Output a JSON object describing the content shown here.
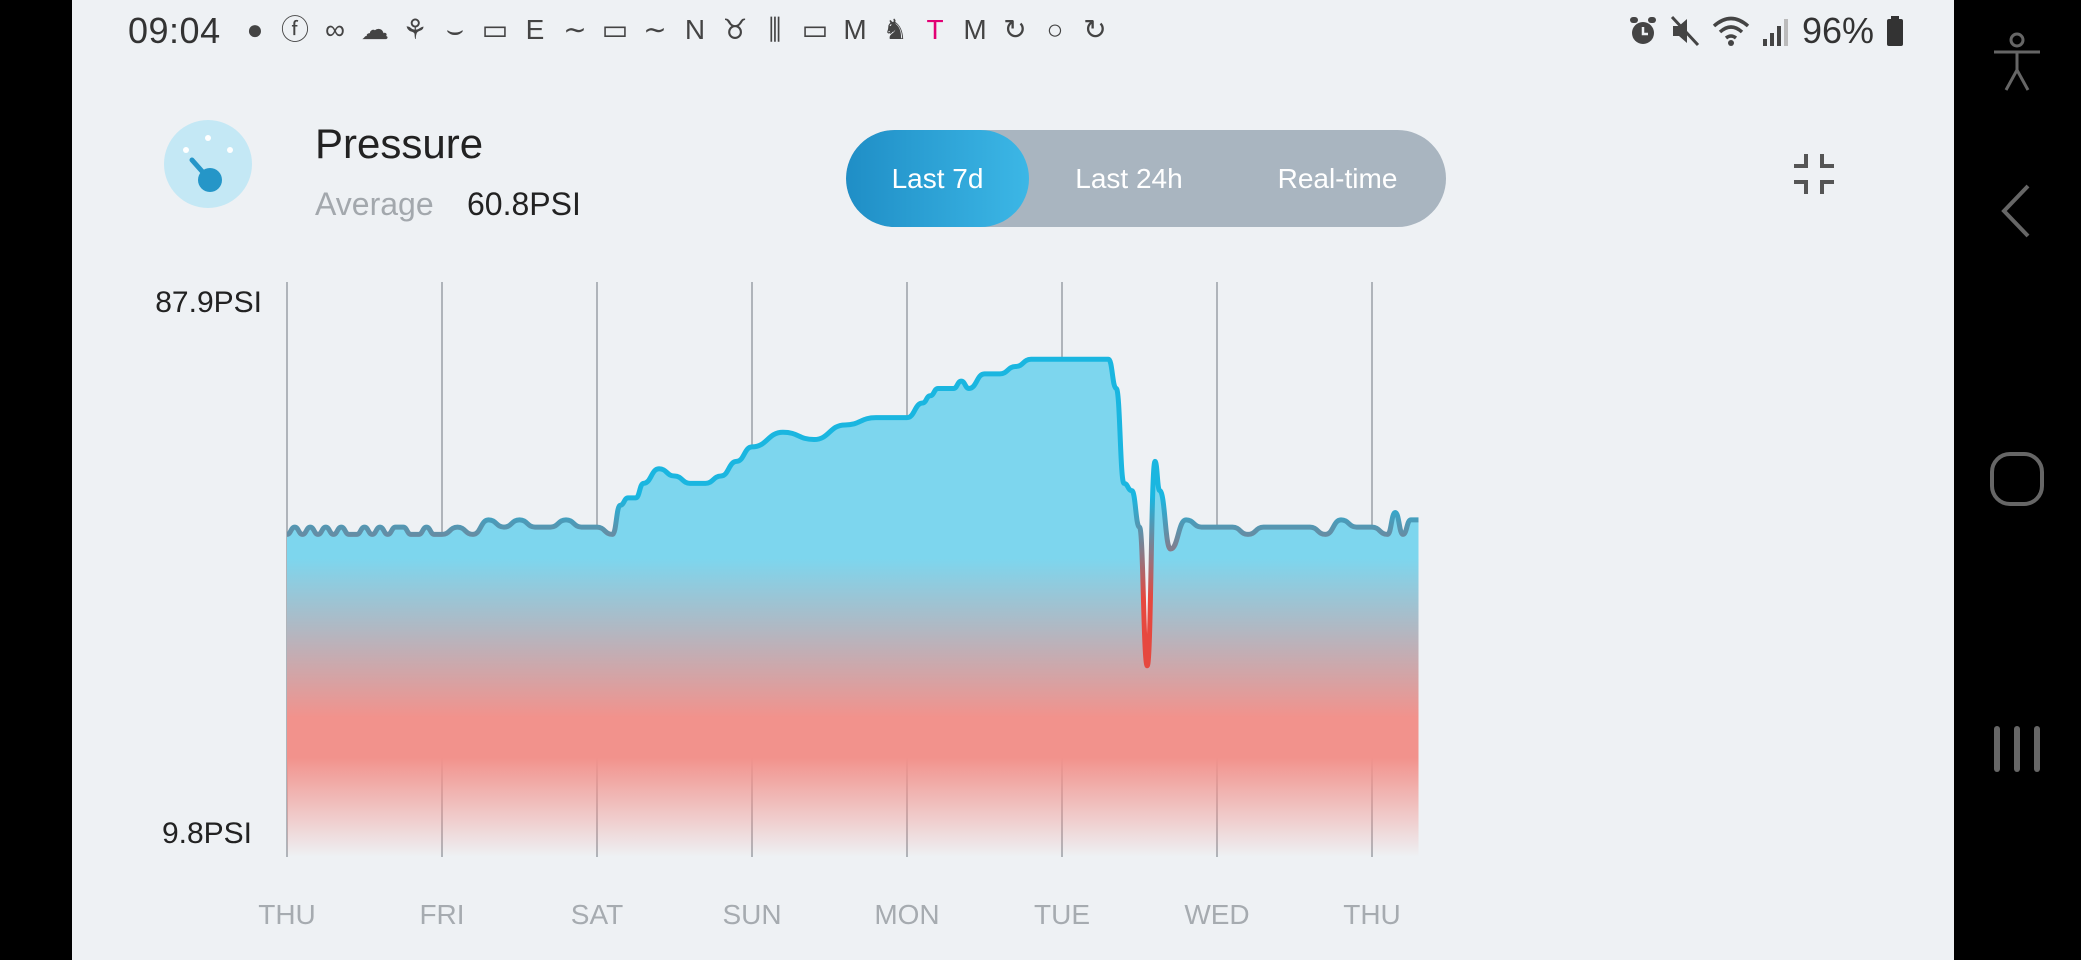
{
  "status_bar": {
    "time": "09:04",
    "battery_pct": "96%",
    "notification_icons": [
      "chat-bubble-icon",
      "facebook-icon",
      "eye-mask-icon",
      "cloud-icon",
      "palm-tree-icon",
      "amazon-smile-icon",
      "npr-icon",
      "E-icon",
      "calm-icon",
      "npr-icon",
      "calm-icon",
      "netflix-icon",
      "cat-icon",
      "soundwave-icon",
      "laptop-icon",
      "gmail-icon",
      "horse-icon",
      "t-mobile-icon",
      "malwarebytes-icon",
      "sync-icon",
      "ring-icon",
      "refresh-icon"
    ],
    "system_icons": [
      "alarm-icon",
      "mute-icon",
      "wifi-icon",
      "signal-icon",
      "battery-icon"
    ]
  },
  "header": {
    "title": "Pressure",
    "average_label": "Average",
    "average_value": "60.8PSI"
  },
  "range_selector": {
    "options": [
      {
        "label": "Last 7d",
        "selected": true
      },
      {
        "label": "Last 24h",
        "selected": false
      },
      {
        "label": "Real-time",
        "selected": false
      }
    ]
  },
  "colors": {
    "accent": "#1f8ec6",
    "line": "#1ab6e0",
    "fill_high": "#7dd6ee",
    "fill_low": "#f2928c"
  },
  "chart_data": {
    "type": "area",
    "unit": "PSI",
    "ymax_label": "87.9PSI",
    "ymin_label": "9.8PSI",
    "ylim": [
      9.8,
      87.9
    ],
    "categories": [
      "THU",
      "FRI",
      "SAT",
      "SUN",
      "MON",
      "TUE",
      "WED",
      "THU"
    ],
    "x": [
      0,
      0.05,
      0.1,
      0.15,
      0.2,
      0.25,
      0.3,
      0.35,
      0.4,
      0.45,
      0.5,
      0.55,
      0.6,
      0.65,
      0.7,
      0.75,
      0.8,
      0.85,
      0.9,
      0.95,
      1.0,
      1.1,
      1.2,
      1.3,
      1.4,
      1.5,
      1.6,
      1.7,
      1.8,
      1.9,
      2.0,
      2.1,
      2.15,
      2.2,
      2.25,
      2.3,
      2.4,
      2.5,
      2.6,
      2.7,
      2.8,
      2.9,
      3.0,
      3.2,
      3.4,
      3.6,
      3.8,
      4.0,
      4.1,
      4.15,
      4.2,
      4.3,
      4.35,
      4.4,
      4.5,
      4.6,
      4.7,
      4.8,
      4.9,
      5.0,
      5.1,
      5.2,
      5.3,
      5.35,
      5.4,
      5.45,
      5.5,
      5.55,
      5.6,
      5.63,
      5.7,
      5.8,
      5.9,
      6.0,
      6.1,
      6.2,
      6.3,
      6.4,
      6.5,
      6.6,
      6.7,
      6.8,
      6.9,
      7.0,
      7.1,
      7.15,
      7.2,
      7.25,
      7.3
    ],
    "values": [
      54,
      55,
      54,
      55,
      54,
      55,
      54,
      55,
      54,
      54,
      55,
      54,
      55,
      54,
      55,
      55,
      54,
      54,
      55,
      54,
      54,
      55,
      54,
      56,
      55,
      56,
      55,
      55,
      56,
      55,
      55,
      54,
      58,
      59,
      59,
      61,
      63,
      62,
      61,
      61,
      62,
      64,
      66,
      68,
      67,
      69,
      70,
      70,
      72,
      73,
      74,
      74,
      75,
      74,
      76,
      76,
      77,
      78,
      78,
      78,
      78,
      78,
      78,
      74,
      61,
      60,
      55,
      36,
      64,
      60,
      52,
      56,
      55,
      55,
      55,
      54,
      55,
      55,
      55,
      55,
      54,
      56,
      55,
      55,
      54,
      57,
      54,
      56,
      56
    ]
  }
}
